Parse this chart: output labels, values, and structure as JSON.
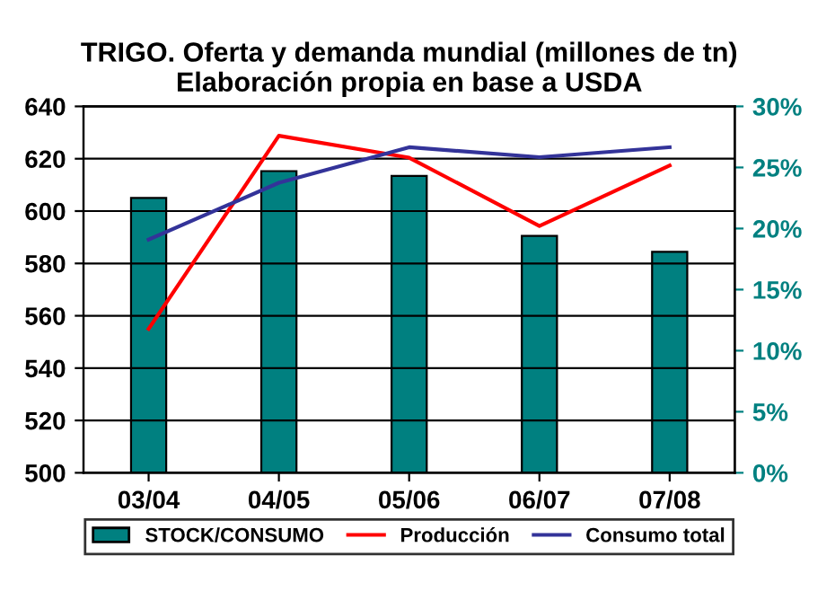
{
  "chart_data": {
    "type": "bar",
    "title": "TRIGO. Oferta y demanda mundial (millones de tn)\nElaboración propia en base a USDA",
    "categories": [
      "03/04",
      "04/05",
      "05/06",
      "06/07",
      "07/08"
    ],
    "series": [
      {
        "name": "STOCK/CONSUMO",
        "axis": "y2",
        "color": "#008080",
        "values": [
          22.5,
          24.7,
          24.3,
          19.4,
          18.1
        ]
      },
      {
        "name": "Producción",
        "type": "line",
        "color": "#ff0000",
        "values": [
          555,
          628.8,
          620.4,
          594.3,
          617.4
        ]
      },
      {
        "name": "Consumo total",
        "type": "line",
        "color": "#333399",
        "values": [
          589.1,
          610.8,
          624.4,
          620.6,
          624.4
        ]
      }
    ],
    "ylim": [
      500,
      640
    ],
    "yticks": [
      500,
      520,
      540,
      560,
      580,
      600,
      620,
      640
    ],
    "y2lim": [
      0,
      30
    ],
    "y2ticks": [
      {
        "value": 0,
        "label": "0%"
      },
      {
        "value": 5,
        "label": "5%"
      },
      {
        "value": 10,
        "label": "10%"
      },
      {
        "value": 15,
        "label": "15%"
      },
      {
        "value": 20,
        "label": "20%"
      },
      {
        "value": 25,
        "label": "25%"
      },
      {
        "value": 30,
        "label": "30%"
      }
    ],
    "grid": "y",
    "legend": "bottom",
    "marker": "none",
    "line_style": "solid"
  }
}
